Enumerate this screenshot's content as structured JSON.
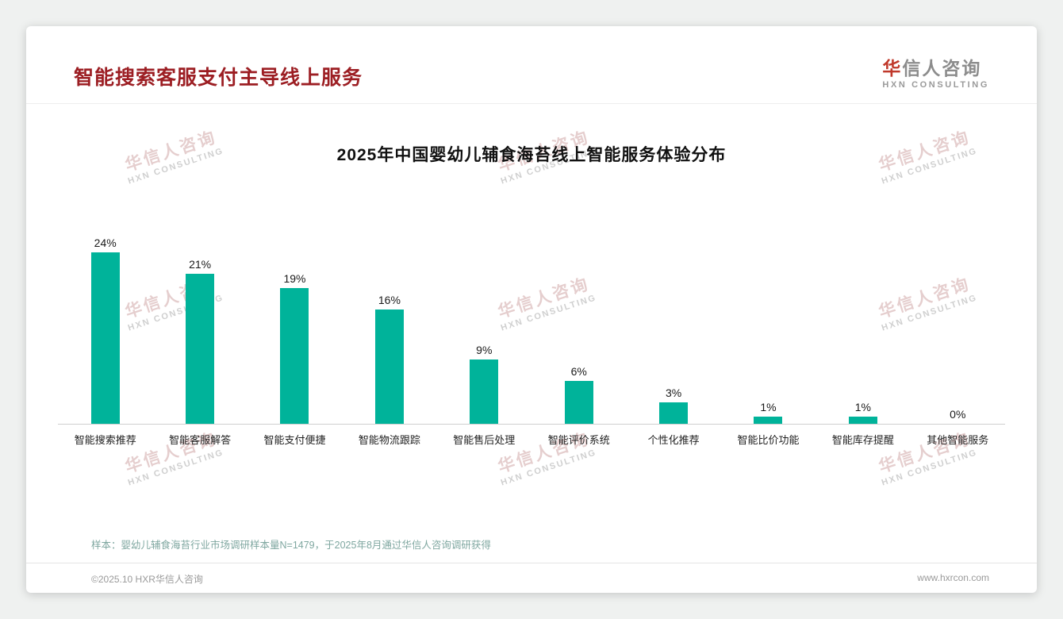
{
  "header": {
    "title": "智能搜索客服支付主导线上服务"
  },
  "logo": {
    "cn_first": "华",
    "cn_rest": "信人咨询",
    "en": "HXN CONSULTING"
  },
  "watermark": {
    "line1": "华信人咨询",
    "line2": "HXN CONSULTING"
  },
  "colors": {
    "accent_red": "#9c1e23",
    "bar_teal": "#00b39a"
  },
  "chart_data": {
    "type": "bar",
    "title": "2025年中国婴幼儿辅食海苔线上智能服务体验分布",
    "categories": [
      "智能搜索推荐",
      "智能客服解答",
      "智能支付便捷",
      "智能物流跟踪",
      "智能售后处理",
      "智能评价系统",
      "个性化推荐",
      "智能比价功能",
      "智能库存提醒",
      "其他智能服务"
    ],
    "values": [
      24,
      21,
      19,
      16,
      9,
      6,
      3,
      1,
      1,
      0
    ],
    "data_labels": [
      "24%",
      "21%",
      "19%",
      "16%",
      "9%",
      "6%",
      "3%",
      "1%",
      "1%",
      "0%"
    ],
    "unit": "%",
    "ylim": [
      0,
      26
    ],
    "xlabel": "",
    "ylabel": "",
    "legend": "none",
    "grid": "off",
    "bar_color": "#00b39a"
  },
  "note": "样本：婴幼儿辅食海苔行业市场调研样本量N=1479，于2025年8月通过华信人咨询调研获得",
  "footer": {
    "left": "©2025.10 HXR华信人咨询",
    "right": "www.hxrcon.com"
  }
}
